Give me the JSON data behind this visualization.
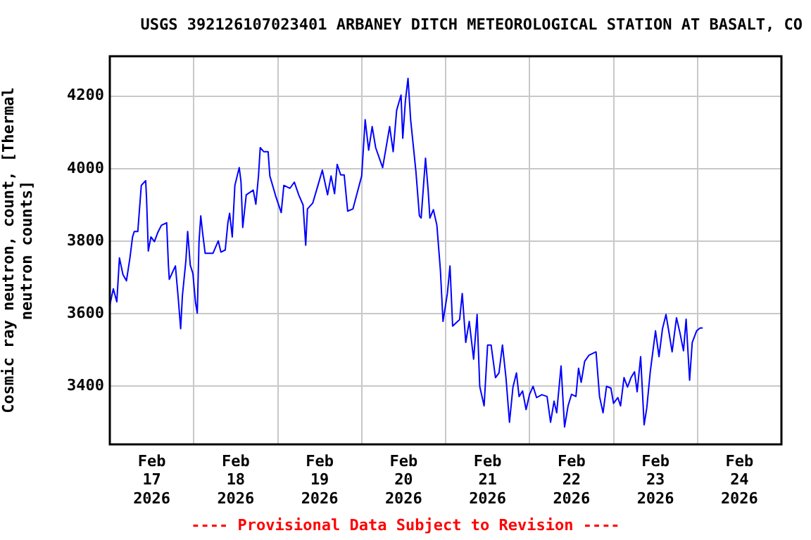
{
  "chart_data": {
    "type": "line",
    "title": "USGS 392126107023401 ARBANEY DITCH METEOROLOGICAL STATION AT BASALT, CO",
    "ylabel": "Cosmic ray neutron, count, [Thermal neutron counts]",
    "annotations": [
      "---- Provisional Data Subject to Revision ----"
    ],
    "x": [
      "2026-02-17T00:00",
      "2026-02-17T01:00",
      "2026-02-17T02:00",
      "2026-02-17T02:45",
      "2026-02-17T03:45",
      "2026-02-17T04:45",
      "2026-02-17T05:45",
      "2026-02-17T06:30",
      "2026-02-17T07:00",
      "2026-02-17T08:00",
      "2026-02-17T09:00",
      "2026-02-17T10:15",
      "2026-02-17T10:30",
      "2026-02-17T11:00",
      "2026-02-17T11:45",
      "2026-02-17T12:45",
      "2026-02-17T13:45",
      "2026-02-17T14:45",
      "2026-02-17T16:15",
      "2026-02-17T16:45",
      "2026-02-17T17:00",
      "2026-02-17T18:45",
      "2026-02-17T19:30",
      "2026-02-17T20:15",
      "2026-02-17T20:45",
      "2026-02-17T21:45",
      "2026-02-17T22:15",
      "2026-02-17T23:00",
      "2026-02-17T23:45",
      "2026-02-18T00:30",
      "2026-02-18T01:00",
      "2026-02-18T01:30",
      "2026-02-18T02:00",
      "2026-02-18T02:30",
      "2026-02-18T03:15",
      "2026-02-18T05:30",
      "2026-02-18T07:00",
      "2026-02-18T07:45",
      "2026-02-18T09:00",
      "2026-02-18T09:45",
      "2026-02-18T10:15",
      "2026-02-18T11:00",
      "2026-02-18T11:45",
      "2026-02-18T13:00",
      "2026-02-18T13:30",
      "2026-02-18T14:00",
      "2026-02-18T15:00",
      "2026-02-18T17:00",
      "2026-02-18T17:45",
      "2026-02-18T18:30",
      "2026-02-18T19:00",
      "2026-02-18T20:00",
      "2026-02-18T21:15",
      "2026-02-18T21:45",
      "2026-02-18T23:30",
      "2026-02-19T01:00",
      "2026-02-19T01:45",
      "2026-02-19T03:30",
      "2026-02-19T04:45",
      "2026-02-19T06:00",
      "2026-02-19T07:15",
      "2026-02-19T08:00",
      "2026-02-19T08:30",
      "2026-02-19T10:00",
      "2026-02-19T11:30",
      "2026-02-19T12:45",
      "2026-02-19T14:15",
      "2026-02-19T15:15",
      "2026-02-19T16:15",
      "2026-02-19T17:00",
      "2026-02-19T18:00",
      "2026-02-19T19:00",
      "2026-02-19T20:00",
      "2026-02-19T21:30",
      "2026-02-20T00:00",
      "2026-02-20T01:00",
      "2026-02-20T02:00",
      "2026-02-20T03:00",
      "2026-02-20T04:00",
      "2026-02-20T06:00",
      "2026-02-20T08:00",
      "2026-02-20T09:00",
      "2026-02-20T10:00",
      "2026-02-20T11:15",
      "2026-02-20T11:45",
      "2026-02-20T12:30",
      "2026-02-20T13:15",
      "2026-02-20T14:00",
      "2026-02-20T15:30",
      "2026-02-20T16:30",
      "2026-02-20T17:00",
      "2026-02-20T18:15",
      "2026-02-20T19:00",
      "2026-02-20T19:30",
      "2026-02-20T20:30",
      "2026-02-20T21:30",
      "2026-02-20T22:30",
      "2026-02-20T23:15",
      "2026-02-21T00:30",
      "2026-02-21T01:15",
      "2026-02-21T02:00",
      "2026-02-21T04:00",
      "2026-02-21T04:45",
      "2026-02-21T05:45",
      "2026-02-21T06:45",
      "2026-02-21T08:00",
      "2026-02-21T09:00",
      "2026-02-21T09:45",
      "2026-02-21T11:00",
      "2026-02-21T12:00",
      "2026-02-21T13:00",
      "2026-02-21T14:15",
      "2026-02-21T15:15",
      "2026-02-21T16:15",
      "2026-02-21T17:15",
      "2026-02-21T18:15",
      "2026-02-21T19:15",
      "2026-02-21T20:15",
      "2026-02-21T21:00",
      "2026-02-21T22:00",
      "2026-02-21T23:00",
      "2026-02-22T00:00",
      "2026-02-22T01:00",
      "2026-02-22T02:00",
      "2026-02-22T03:30",
      "2026-02-22T05:00",
      "2026-02-22T06:00",
      "2026-02-22T07:00",
      "2026-02-22T07:45",
      "2026-02-22T09:00",
      "2026-02-22T10:00",
      "2026-02-22T11:00",
      "2026-02-22T12:00",
      "2026-02-22T13:15",
      "2026-02-22T14:00",
      "2026-02-22T14:45",
      "2026-02-22T15:45",
      "2026-02-22T17:00",
      "2026-02-22T19:00",
      "2026-02-22T20:00",
      "2026-02-22T21:00",
      "2026-02-22T22:00",
      "2026-02-22T23:15",
      "2026-02-23T00:00",
      "2026-02-23T01:15",
      "2026-02-23T02:00",
      "2026-02-23T03:00",
      "2026-02-23T04:00",
      "2026-02-23T05:00",
      "2026-02-23T06:00",
      "2026-02-23T06:45",
      "2026-02-23T07:45",
      "2026-02-23T08:45",
      "2026-02-23T09:30",
      "2026-02-23T10:30",
      "2026-02-23T12:00",
      "2026-02-23T13:00",
      "2026-02-23T14:00",
      "2026-02-23T15:00",
      "2026-02-23T16:00",
      "2026-02-23T16:45",
      "2026-02-23T18:00",
      "2026-02-23T19:00",
      "2026-02-23T20:00",
      "2026-02-23T20:45",
      "2026-02-23T21:45",
      "2026-02-23T22:30",
      "2026-02-23T23:45",
      "2026-02-24T00:45",
      "2026-02-24T01:30"
    ],
    "series": [
      {
        "color": "#0000ff",
        "values": [
          3624,
          3669,
          3633,
          3754,
          3708,
          3691,
          3754,
          3812,
          3827,
          3827,
          3954,
          3967,
          3918,
          3773,
          3812,
          3799,
          3825,
          3844,
          3851,
          3734,
          3695,
          3732,
          3650,
          3559,
          3650,
          3747,
          3827,
          3734,
          3711,
          3631,
          3602,
          3799,
          3870,
          3825,
          3767,
          3767,
          3801,
          3770,
          3776,
          3851,
          3877,
          3812,
          3954,
          4003,
          3964,
          3838,
          3928,
          3941,
          3902,
          3980,
          4058,
          4047,
          4047,
          3980,
          3922,
          3879,
          3954,
          3946,
          3963,
          3928,
          3900,
          3789,
          3889,
          3905,
          3954,
          3996,
          3928,
          3980,
          3931,
          4012,
          3983,
          3983,
          3883,
          3889,
          3980,
          4135,
          4051,
          4116,
          4058,
          4003,
          4116,
          4047,
          4161,
          4203,
          4084,
          4187,
          4249,
          4135,
          3993,
          3870,
          3864,
          4029,
          3941,
          3864,
          3887,
          3844,
          3721,
          3579,
          3656,
          3732,
          3566,
          3584,
          3656,
          3521,
          3579,
          3475,
          3598,
          3400,
          3346,
          3514,
          3514,
          3424,
          3437,
          3514,
          3424,
          3301,
          3398,
          3437,
          3372,
          3387,
          3336,
          3378,
          3400,
          3369,
          3377,
          3372,
          3301,
          3359,
          3327,
          3456,
          3288,
          3346,
          3378,
          3372,
          3450,
          3411,
          3469,
          3486,
          3495,
          3372,
          3327,
          3400,
          3395,
          3353,
          3369,
          3346,
          3424,
          3398,
          3424,
          3440,
          3385,
          3482,
          3294,
          3340,
          3440,
          3553,
          3482,
          3559,
          3598,
          3540,
          3495,
          3589,
          3547,
          3498,
          3585,
          3417,
          3521,
          3553,
          3561,
          3561
        ]
      }
    ],
    "xlim": [
      "2026-02-17T00:00",
      "2026-02-25T00:00"
    ],
    "xticks": [
      {
        "value": "2026-02-17T12:00",
        "label": "Feb\n17\n2026"
      },
      {
        "value": "2026-02-18T00:00",
        "label": null
      },
      {
        "value": "2026-02-18T12:00",
        "label": "Feb\n18\n2026"
      },
      {
        "value": "2026-02-19T00:00",
        "label": null
      },
      {
        "value": "2026-02-19T12:00",
        "label": "Feb\n19\n2026"
      },
      {
        "value": "2026-02-20T00:00",
        "label": null
      },
      {
        "value": "2026-02-20T12:00",
        "label": "Feb\n20\n2026"
      },
      {
        "value": "2026-02-21T00:00",
        "label": null
      },
      {
        "value": "2026-02-21T12:00",
        "label": "Feb\n21\n2026"
      },
      {
        "value": "2026-02-22T00:00",
        "label": null
      },
      {
        "value": "2026-02-22T12:00",
        "label": "Feb\n22\n2026"
      },
      {
        "value": "2026-02-23T00:00",
        "label": null
      },
      {
        "value": "2026-02-23T12:00",
        "label": "Feb\n23\n2026"
      },
      {
        "value": "2026-02-24T00:00",
        "label": null
      },
      {
        "value": "2026-02-24T12:00",
        "label": "Feb\n24\n2026"
      }
    ],
    "ylim": [
      3240,
      4310
    ],
    "yticks": [
      3400,
      3600,
      3800,
      4000,
      4200
    ],
    "grid": true,
    "legend": false,
    "marker": "none",
    "line_style": "solid"
  }
}
